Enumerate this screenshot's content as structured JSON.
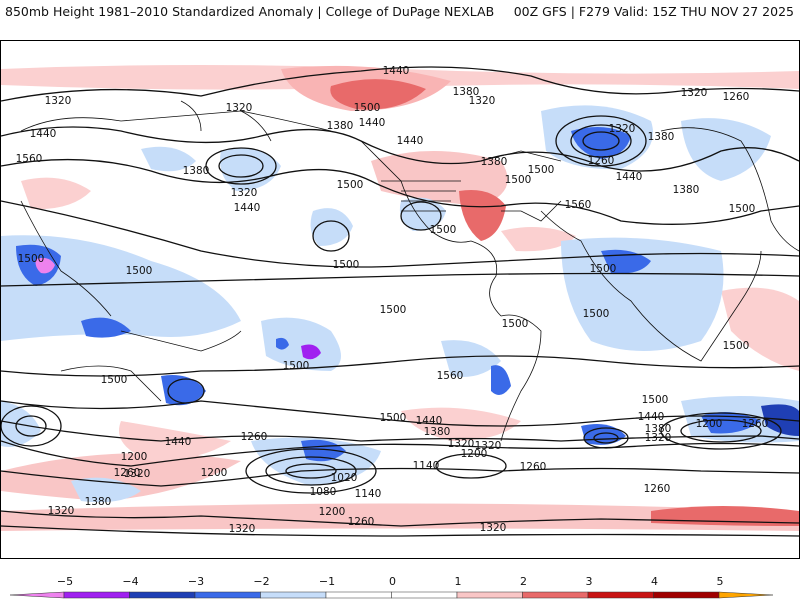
{
  "header": {
    "left_title": "850mb Height 1981–2010 Standardized Anomaly | College of DuPage NEXLAB",
    "right_title": "00Z GFS | F279 Valid: 15Z THU NOV 27 2025"
  },
  "map": {
    "contour_labels": [
      "1440",
      "1320",
      "1320",
      "1440",
      "1560",
      "1380",
      "1320",
      "1440",
      "1380",
      "1500",
      "1380",
      "1320",
      "1440",
      "1500",
      "1440",
      "1380",
      "1500",
      "1500",
      "1500",
      "1320",
      "1260",
      "1380",
      "1560",
      "1440",
      "1320",
      "1260",
      "1380",
      "1500",
      "1500",
      "1500",
      "1500",
      "1500",
      "1500",
      "1500",
      "1500",
      "1500",
      "1500",
      "1560",
      "1500",
      "1500",
      "1440",
      "1380",
      "1320",
      "1440",
      "1260",
      "1200",
      "1320",
      "1200",
      "1260",
      "1320",
      "1380",
      "1320",
      "1140",
      "1200",
      "1260",
      "1020",
      "1080",
      "1140",
      "1200",
      "1260",
      "1320",
      "1320",
      "1260",
      "1500",
      "1440",
      "1380",
      "1320",
      "1200",
      "1260"
    ]
  },
  "legend": {
    "tick_labels": [
      "−5",
      "−4",
      "−3",
      "−2",
      "−1",
      "0",
      "1",
      "2",
      "3",
      "4",
      "5"
    ],
    "colors": [
      "#ee82ee",
      "#a020f0",
      "#1f3fb4",
      "#3a6ae8",
      "#c6ddf9",
      "#ffffff",
      "#ffffff",
      "#f9c6c6",
      "#e86a6a",
      "#c81414",
      "#a00000",
      "#ffa500"
    ]
  }
}
